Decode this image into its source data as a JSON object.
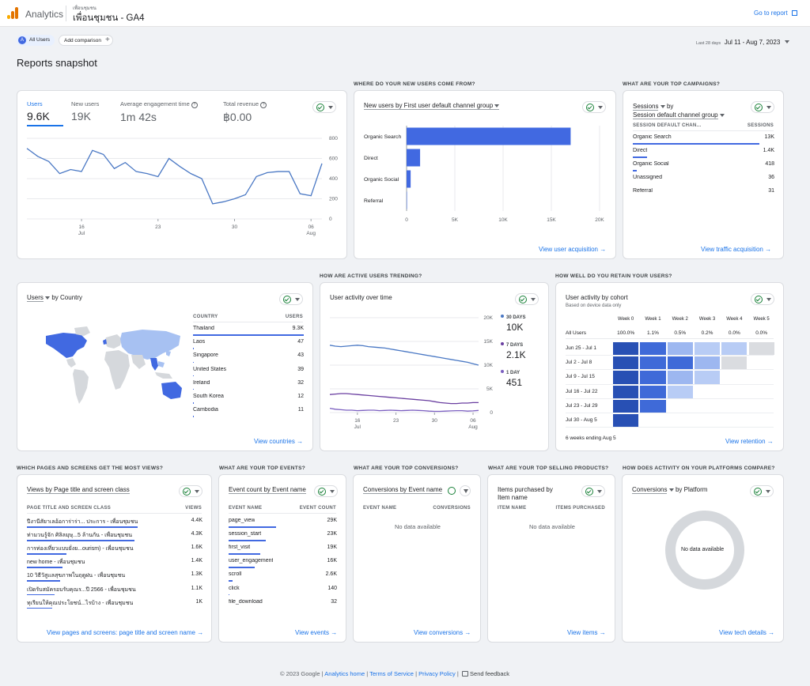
{
  "header": {
    "app_name": "Analytics",
    "account": "เพื่อนชุมชน",
    "property": "เพื่อนชุมชน - GA4",
    "goto_report": "Go to report"
  },
  "toolbar": {
    "segment_badge": "A",
    "segment": "All Users",
    "add_comparison": "Add comparison",
    "date_prefix": "Last 28 days",
    "date_range": "Jul 11 - Aug 7, 2023"
  },
  "page_title": "Reports snapshot",
  "sections": {
    "new_users": "WHERE DO YOUR NEW USERS COME FROM?",
    "campaigns": "WHAT ARE YOUR TOP CAMPAIGNS?",
    "trending": "HOW ARE ACTIVE USERS TRENDING?",
    "retain": "HOW WELL DO YOU RETAIN YOUR USERS?",
    "pages": "WHICH PAGES AND SCREENS GET THE MOST VIEWS?",
    "events": "WHAT ARE YOUR TOP EVENTS?",
    "conversions": "WHAT ARE YOUR TOP CONVERSIONS?",
    "products": "WHAT ARE YOUR TOP SELLING PRODUCTS?",
    "platforms": "HOW DOES ACTIVITY ON YOUR PLATFORMS COMPARE?"
  },
  "overview": {
    "metrics": [
      {
        "label": "Users",
        "value": "9.6K"
      },
      {
        "label": "New users",
        "value": "19K"
      },
      {
        "label": "Average engagement time",
        "value": "1m 42s"
      },
      {
        "label": "Total revenue",
        "value": "฿0.00"
      }
    ],
    "y_ticks": [
      "800",
      "600",
      "400",
      "200",
      "0"
    ],
    "x_ticks": [
      {
        "day": "16",
        "month": "Jul"
      },
      {
        "day": "23",
        "month": ""
      },
      {
        "day": "30",
        "month": ""
      },
      {
        "day": "06",
        "month": "Aug"
      }
    ]
  },
  "acquisition": {
    "title": "New users by First user default channel group",
    "x_ticks": [
      "0",
      "5K",
      "10K",
      "15K",
      "20K"
    ],
    "link": "View user acquisition"
  },
  "campaigns": {
    "title_metric": "Sessions",
    "title_by": "by",
    "title_dim": "Session default channel group",
    "col_dim": "SESSION DEFAULT CHAN...",
    "col_val": "SESSIONS",
    "rows": [
      {
        "label": "Organic Search",
        "value": "13K",
        "frac": 1.0
      },
      {
        "label": "Direct",
        "value": "1.4K",
        "frac": 0.11
      },
      {
        "label": "Organic Social",
        "value": "418",
        "frac": 0.03
      },
      {
        "label": "Unassigned",
        "value": "36",
        "frac": 0.0
      },
      {
        "label": "Referral",
        "value": "31",
        "frac": 0.0
      }
    ],
    "link": "View traffic acquisition"
  },
  "country": {
    "title_metric": "Users",
    "title_by": "by Country",
    "col_dim": "COUNTRY",
    "col_val": "USERS",
    "rows": [
      {
        "label": "Thailand",
        "value": "9.3K",
        "frac": 1.0
      },
      {
        "label": "Laos",
        "value": "47",
        "frac": 0.005
      },
      {
        "label": "Singapore",
        "value": "43",
        "frac": 0.005
      },
      {
        "label": "United States",
        "value": "39",
        "frac": 0.004
      },
      {
        "label": "Ireland",
        "value": "32",
        "frac": 0.003
      },
      {
        "label": "South Korea",
        "value": "12",
        "frac": 0.001
      },
      {
        "label": "Cambodia",
        "value": "11",
        "frac": 0.001
      }
    ],
    "link": "View countries"
  },
  "activity": {
    "title": "User activity over time",
    "y_ticks": [
      "20K",
      "15K",
      "10K",
      "5K",
      "0"
    ],
    "x_ticks": [
      {
        "day": "16",
        "month": "Jul"
      },
      {
        "day": "23",
        "month": ""
      },
      {
        "day": "30",
        "month": ""
      },
      {
        "day": "06",
        "month": "Aug"
      }
    ],
    "legend": [
      {
        "label": "30 DAYS",
        "value": "10K",
        "color": "#4a78c4"
      },
      {
        "label": "7 DAYS",
        "value": "2.1K",
        "color": "#6a3fa0"
      },
      {
        "label": "1 DAY",
        "value": "451",
        "color": "#7b5fc0"
      }
    ]
  },
  "cohort": {
    "title": "User activity by cohort",
    "subtitle": "Based on device data only",
    "weeks": [
      "Week 0",
      "Week 1",
      "Week 2",
      "Week 3",
      "Week 4",
      "Week 5"
    ],
    "all_users_label": "All Users",
    "all_users": [
      "100.0%",
      "1.1%",
      "0.5%",
      "0.2%",
      "0.0%",
      "0.0%"
    ],
    "rows": [
      "Jun 25 - Jul 1",
      "Jul 2 - Jul 8",
      "Jul 9 - Jul 15",
      "Jul 16 - Jul 22",
      "Jul 23 - Jul 29",
      "Jul 30 - Aug 5"
    ],
    "footer": "6 weeks ending Aug 5",
    "link": "View retention"
  },
  "pages": {
    "title": "Views by Page title and screen class",
    "col_dim": "PAGE TITLE AND SCREEN CLASS",
    "col_val": "VIEWS",
    "rows": [
      {
        "label": "ปีงานีสัยาเลอ้อการ่าร่า... ประการ - เพื่อนชุมชน",
        "value": "4.4K",
        "frac": 1.0
      },
      {
        "label": "ท่ามวนรู้จัก ศิลิลมุษุ...5 ล้านกัน - เพื่อนชุมชน",
        "value": "4.3K",
        "frac": 0.97
      },
      {
        "label": "การท่องเที่ยวแบบยั่งย...ourism) - เพื่อนชุมชน",
        "value": "1.6K",
        "frac": 0.36
      },
      {
        "label": "new home - เพื่อนชุมชน",
        "value": "1.4K",
        "frac": 0.32
      },
      {
        "label": "10 วิธีวัสูแลสุขภาพในฤดูฝน - เพื่อนชุมชน",
        "value": "1.3K",
        "frac": 0.3
      },
      {
        "label": "เปิดรับสมัครอบรับคุณร...ปี 2566 - เพื่อนชุมชน",
        "value": "1.1K",
        "frac": 0.25
      },
      {
        "label": "ทุเรียนให้คุณประโยชน์...ไรบ้าง - เพื่อนชุมชน",
        "value": "1K",
        "frac": 0.23
      }
    ],
    "link": "View pages and screens: page title and screen name"
  },
  "events": {
    "title": "Event count by Event name",
    "col_dim": "EVENT NAME",
    "col_val": "EVENT COUNT",
    "rows": [
      {
        "label": "page_view",
        "value": "29K",
        "frac": 1.0
      },
      {
        "label": "session_start",
        "value": "23K",
        "frac": 0.79
      },
      {
        "label": "first_visit",
        "value": "19K",
        "frac": 0.66
      },
      {
        "label": "user_engagement",
        "value": "16K",
        "frac": 0.55
      },
      {
        "label": "scroll",
        "value": "2.6K",
        "frac": 0.09
      },
      {
        "label": "click",
        "value": "140",
        "frac": 0.005
      },
      {
        "label": "file_download",
        "value": "32",
        "frac": 0.001
      }
    ],
    "link": "View events"
  },
  "conversions": {
    "title": "Conversions by Event name",
    "col_dim": "EVENT NAME",
    "col_val": "CONVERSIONS",
    "nodata": "No data available",
    "link": "View conversions"
  },
  "products": {
    "title": "Items purchased by Item name",
    "col_dim": "ITEM NAME",
    "col_val": "ITEMS PURCHASED",
    "nodata": "No data available",
    "link": "View items"
  },
  "platform": {
    "title_metric": "Conversions",
    "title_by": "by Platform",
    "nodata": "No data available",
    "link": "View tech details"
  },
  "footer": {
    "copyright": "© 2023 Google",
    "home": "Analytics home",
    "terms": "Terms of Service",
    "privacy": "Privacy Policy",
    "feedback": "Send feedback"
  },
  "chart_data": [
    {
      "type": "line",
      "title": "",
      "x": [
        "Jul 11",
        "Jul 12",
        "Jul 13",
        "Jul 14",
        "Jul 15",
        "Jul 16",
        "Jul 17",
        "Jul 18",
        "Jul 19",
        "Jul 20",
        "Jul 21",
        "Jul 22",
        "Jul 23",
        "Jul 24",
        "Jul 25",
        "Jul 26",
        "Jul 27",
        "Jul 28",
        "Jul 29",
        "Jul 30",
        "Jul 31",
        "Aug 1",
        "Aug 2",
        "Aug 3",
        "Aug 4",
        "Aug 5",
        "Aug 6",
        "Aug 7"
      ],
      "series": [
        {
          "name": "Users",
          "values": [
            700,
            620,
            570,
            450,
            490,
            470,
            680,
            640,
            500,
            560,
            470,
            450,
            420,
            600,
            520,
            450,
            400,
            150,
            170,
            200,
            240,
            420,
            460,
            470,
            470,
            250,
            230,
            550
          ]
        }
      ],
      "ylim": [
        0,
        800
      ]
    },
    {
      "type": "bar",
      "title": "New users by First user default channel group",
      "categories": [
        "Organic Search",
        "Direct",
        "Organic Social",
        "Referral"
      ],
      "values": [
        17000,
        1400,
        420,
        30
      ],
      "xlim": [
        0,
        20000
      ]
    },
    {
      "type": "line",
      "title": "User activity over time",
      "x": [
        "Jul 11",
        "Jul 12",
        "Jul 13",
        "Jul 14",
        "Jul 15",
        "Jul 16",
        "Jul 17",
        "Jul 18",
        "Jul 19",
        "Jul 20",
        "Jul 21",
        "Jul 22",
        "Jul 23",
        "Jul 24",
        "Jul 25",
        "Jul 26",
        "Jul 27",
        "Jul 28",
        "Jul 29",
        "Jul 30",
        "Jul 31",
        "Aug 1",
        "Aug 2",
        "Aug 3",
        "Aug 4",
        "Aug 5",
        "Aug 6",
        "Aug 7"
      ],
      "series": [
        {
          "name": "30 DAYS",
          "values": [
            14200,
            14000,
            13900,
            14000,
            14100,
            14200,
            14100,
            13900,
            13800,
            13700,
            13600,
            13400,
            13200,
            13000,
            12800,
            12600,
            12400,
            12200,
            12000,
            11800,
            11600,
            11400,
            11200,
            11000,
            10800,
            10600,
            10300,
            10000
          ]
        },
        {
          "name": "7 DAYS",
          "values": [
            3800,
            3900,
            4000,
            4000,
            3900,
            3800,
            3700,
            3600,
            3500,
            3400,
            3300,
            3200,
            3100,
            3000,
            2900,
            2800,
            2700,
            2600,
            2500,
            2300,
            2100,
            2000,
            1900,
            1900,
            2000,
            2000,
            2100,
            2100
          ]
        },
        {
          "name": "1 DAY",
          "values": [
            900,
            700,
            600,
            500,
            500,
            400,
            450,
            500,
            500,
            400,
            450,
            500,
            450,
            400,
            450,
            500,
            450,
            400,
            300,
            250,
            250,
            300,
            350,
            400,
            400,
            300,
            350,
            451
          ]
        }
      ],
      "ylim": [
        0,
        20000
      ]
    },
    {
      "type": "heatmap",
      "title": "User activity by cohort",
      "x": [
        "Week 0",
        "Week 1",
        "Week 2",
        "Week 3",
        "Week 4",
        "Week 5"
      ],
      "y": [
        "Jun 25 - Jul 1",
        "Jul 2 - Jul 8",
        "Jul 9 - Jul 15",
        "Jul 16 - Jul 22",
        "Jul 23 - Jul 29",
        "Jul 30 - Aug 5"
      ],
      "values": [
        [
          1.0,
          0.7,
          0.35,
          0.25,
          0.2,
          0.05
        ],
        [
          1.0,
          0.7,
          0.8,
          0.3,
          0.05,
          null
        ],
        [
          1.0,
          0.7,
          0.3,
          0.25,
          null,
          null
        ],
        [
          1.0,
          0.7,
          0.25,
          null,
          null,
          null
        ],
        [
          1.0,
          0.75,
          null,
          null,
          null,
          null
        ],
        [
          1.0,
          null,
          null,
          null,
          null,
          null
        ]
      ]
    }
  ]
}
